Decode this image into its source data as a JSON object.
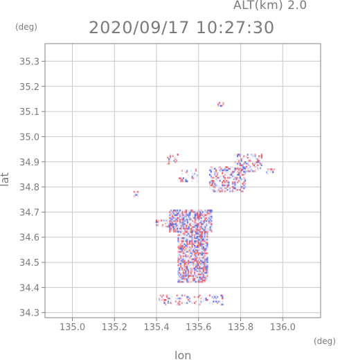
{
  "header": {
    "alt_label": "ALT(km) 2.0",
    "timestamp": "2020/09/17 10:27:30"
  },
  "colors": {
    "axis": "#808080",
    "grid": "#c8c8c8",
    "positive": "#e8505a",
    "negative": "#5064e6",
    "neutral": "#dcdcf0"
  },
  "chart_data": {
    "type": "heatmap",
    "title": "2020/09/17 10:27:30",
    "subtitle": "ALT(km) 2.0",
    "xlabel": "lon",
    "ylabel": "lat",
    "xunit": "(deg)",
    "yunit": "(deg)",
    "xlim": [
      134.87,
      136.18
    ],
    "ylim": [
      34.28,
      35.37
    ],
    "xticks": [
      "135.0",
      "135.2",
      "135.4",
      "135.6",
      "135.8",
      "136.0"
    ],
    "yticks": [
      "34.3",
      "34.4",
      "34.5",
      "34.6",
      "34.7",
      "34.8",
      "34.9",
      "35.0",
      "35.1",
      "35.2",
      "35.3"
    ],
    "grid": true,
    "echo_regions": [
      {
        "lon": [
          135.46,
          135.66
        ],
        "lat": [
          34.62,
          34.71
        ],
        "density": 0.9
      },
      {
        "lon": [
          135.5,
          135.64
        ],
        "lat": [
          34.42,
          34.62
        ],
        "density": 0.85
      },
      {
        "lon": [
          135.65,
          135.82
        ],
        "lat": [
          34.78,
          34.88
        ],
        "density": 0.55
      },
      {
        "lon": [
          135.77,
          135.9
        ],
        "lat": [
          34.86,
          34.93
        ],
        "density": 0.5
      },
      {
        "lon": [
          135.39,
          135.47
        ],
        "lat": [
          34.64,
          34.67
        ],
        "density": 0.5
      },
      {
        "lon": [
          135.45,
          135.5
        ],
        "lat": [
          34.89,
          34.93
        ],
        "density": 0.4
      },
      {
        "lon": [
          135.41,
          135.72
        ],
        "lat": [
          34.33,
          34.37
        ],
        "density": 0.25
      },
      {
        "lon": [
          135.5,
          135.6
        ],
        "lat": [
          34.82,
          34.87
        ],
        "density": 0.25
      },
      {
        "lon": [
          135.92,
          135.96
        ],
        "lat": [
          34.85,
          34.87
        ],
        "density": 0.5
      },
      {
        "lon": [
          135.69,
          135.72
        ],
        "lat": [
          35.12,
          35.135
        ],
        "density": 0.6
      },
      {
        "lon": [
          135.29,
          135.31
        ],
        "lat": [
          34.76,
          34.78
        ],
        "density": 0.6
      }
    ]
  }
}
